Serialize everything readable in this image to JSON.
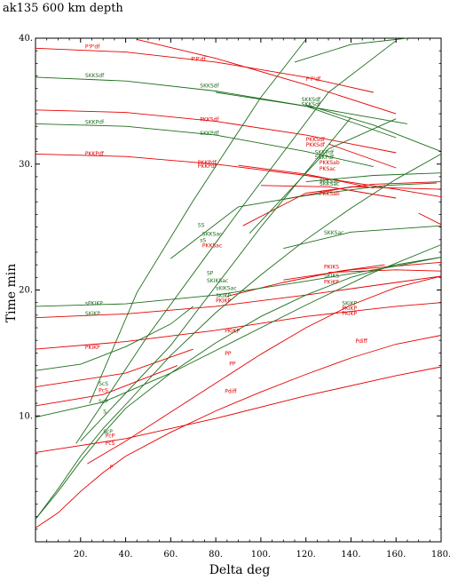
{
  "chart_data": {
    "type": "line",
    "title": "ak135  600 km depth",
    "xlabel": "Delta  deg",
    "ylabel": "Time  min",
    "xlim": [
      0,
      180
    ],
    "ylim": [
      0,
      40
    ],
    "xticks": [
      20,
      40,
      60,
      80,
      100,
      120,
      140,
      160,
      180
    ],
    "xtick_labels": [
      "20.",
      "40.",
      "60.",
      "80.",
      "100.",
      "120.",
      "140.",
      "160.",
      "180."
    ],
    "yticks": [
      10,
      20,
      30,
      40
    ],
    "ytick_labels": [
      "10.",
      "20.",
      "30.",
      "40."
    ],
    "grid": false,
    "colors": {
      "P": "#e60000",
      "S": "#1e6e1e"
    },
    "series": [
      {
        "color": "P",
        "x": [
          0,
          10,
          20,
          30,
          40,
          60,
          80,
          100,
          120,
          140,
          160,
          180
        ],
        "y": [
          1.1,
          2.3,
          4.0,
          5.5,
          6.8,
          8.7,
          10.4,
          11.9,
          13.3,
          14.6,
          15.7,
          16.4
        ]
      },
      {
        "color": "P",
        "x": [
          23,
          40,
          60,
          80,
          100,
          120,
          140,
          160,
          180
        ],
        "y": [
          6.2,
          8.0,
          10.3,
          12.6,
          14.9,
          17.0,
          18.8,
          20.2,
          21.1
        ]
      },
      {
        "color": "P",
        "x": [
          0,
          40,
          80,
          120,
          160,
          180
        ],
        "y": [
          7.1,
          8.2,
          9.8,
          11.6,
          13.2,
          13.9
        ]
      },
      {
        "color": "P",
        "x": [
          0,
          40,
          80,
          120,
          160,
          180
        ],
        "y": [
          15.3,
          15.9,
          16.8,
          17.9,
          18.7,
          19.0
        ]
      },
      {
        "color": "P",
        "x": [
          0,
          40,
          80,
          120,
          160,
          180
        ],
        "y": [
          17.8,
          18.1,
          18.7,
          19.6,
          20.6,
          21.1
        ]
      },
      {
        "color": "P",
        "x": [
          0,
          40,
          80,
          120,
          160,
          180
        ],
        "y": [
          30.8,
          30.6,
          30.0,
          29.1,
          28.0,
          27.4
        ]
      },
      {
        "color": "P",
        "x": [
          0,
          40,
          80,
          120,
          160
        ],
        "y": [
          34.3,
          34.1,
          33.4,
          32.3,
          30.9
        ]
      },
      {
        "color": "P",
        "x": [
          0,
          40,
          80,
          120,
          150
        ],
        "y": [
          39.2,
          38.9,
          38.1,
          36.9,
          35.7
        ]
      },
      {
        "color": "P",
        "x": [
          45,
          80,
          120,
          160
        ],
        "y": [
          39.9,
          38.4,
          36.3,
          34.0
        ]
      },
      {
        "color": "P",
        "x": [
          0,
          30,
          63
        ],
        "y": [
          10.8,
          11.7,
          14.0
        ]
      },
      {
        "color": "P",
        "x": [
          0,
          40,
          70
        ],
        "y": [
          12.3,
          13.4,
          15.3
        ]
      },
      {
        "color": "P",
        "x": [
          92,
          120,
          150,
          180
        ],
        "y": [
          25.1,
          27.7,
          28.4,
          28.6
        ]
      },
      {
        "color": "P",
        "x": [
          110,
          140,
          180
        ],
        "y": [
          27.2,
          28.2,
          28.0
        ]
      },
      {
        "color": "P",
        "x": [
          110,
          140,
          180
        ],
        "y": [
          20.8,
          21.6,
          22.2
        ]
      },
      {
        "color": "P",
        "x": [
          130,
          160,
          180
        ],
        "y": [
          21.4,
          21.6,
          21.5
        ]
      },
      {
        "color": "P",
        "x": [
          100,
          130,
          160
        ],
        "y": [
          28.3,
          28.2,
          27.3
        ]
      },
      {
        "color": "P",
        "x": [
          170,
          180
        ],
        "y": [
          26.1,
          25.2
        ]
      },
      {
        "color": "P",
        "x": [
          85,
          110,
          135,
          155
        ],
        "y": [
          19.5,
          20.6,
          21.5,
          22.0
        ]
      },
      {
        "color": "P",
        "x": [
          90,
          120,
          150
        ],
        "y": [
          29.9,
          29.2,
          28.1
        ]
      },
      {
        "color": "P",
        "x": [
          130,
          160
        ],
        "y": [
          31.6,
          29.7
        ]
      },
      {
        "color": "S",
        "x": [
          0,
          10,
          20,
          30,
          40,
          60,
          80,
          100,
          120,
          140,
          160,
          180
        ],
        "y": [
          1.8,
          4.2,
          6.8,
          9.0,
          10.9,
          14.8,
          18.2,
          21.2,
          24.0,
          26.5,
          28.8,
          30.8
        ]
      },
      {
        "color": "S",
        "x": [
          0,
          10,
          20,
          30,
          40,
          60,
          80,
          100,
          120,
          140,
          160,
          180
        ],
        "y": [
          1.8,
          4.0,
          6.4,
          8.6,
          10.6,
          13.4,
          15.8,
          17.9,
          19.6,
          21.0,
          22.0,
          22.6
        ]
      },
      {
        "color": "S",
        "x": [
          0,
          30,
          60,
          90,
          120,
          150,
          180
        ],
        "y": [
          9.9,
          11.1,
          13.4,
          16.1,
          18.8,
          21.4,
          23.6
        ]
      },
      {
        "color": "S",
        "x": [
          0,
          20,
          40,
          60,
          70
        ],
        "y": [
          13.6,
          14.1,
          15.5,
          17.3,
          18.7
        ]
      },
      {
        "color": "S",
        "x": [
          0,
          40,
          80,
          120,
          160,
          180
        ],
        "y": [
          18.7,
          18.9,
          19.6,
          20.7,
          21.9,
          22.6
        ]
      },
      {
        "color": "S",
        "x": [
          0,
          40,
          80,
          120,
          150
        ],
        "y": [
          33.2,
          33.0,
          32.3,
          31.0,
          29.8
        ]
      },
      {
        "color": "S",
        "x": [
          0,
          40,
          80,
          120,
          165
        ],
        "y": [
          36.9,
          36.6,
          35.8,
          34.6,
          33.2
        ]
      },
      {
        "color": "S",
        "x": [
          80,
          120,
          160
        ],
        "y": [
          35.7,
          34.6,
          32.1
        ]
      },
      {
        "color": "S",
        "x": [
          120,
          150,
          180
        ],
        "y": [
          34.7,
          33.1,
          31.0
        ]
      },
      {
        "color": "S",
        "x": [
          110,
          140,
          180
        ],
        "y": [
          23.3,
          24.6,
          25.1
        ]
      },
      {
        "color": "S",
        "x": [
          120,
          150,
          180
        ],
        "y": [
          28.6,
          29.1,
          29.3
        ]
      },
      {
        "color": "S",
        "x": [
          20,
          60,
          100,
          140
        ],
        "y": [
          8.0,
          15.6,
          25.0,
          33.7
        ]
      },
      {
        "color": "S",
        "x": [
          18,
          50,
          90,
          130,
          160
        ],
        "y": [
          7.8,
          16.4,
          26.2,
          35.7,
          39.8
        ]
      },
      {
        "color": "S",
        "x": [
          24,
          45,
          70,
          100,
          120
        ],
        "y": [
          11.0,
          19.8,
          27.1,
          35.3,
          39.9
        ]
      },
      {
        "color": "S",
        "x": [
          60,
          90,
          120,
          155,
          178
        ],
        "y": [
          22.5,
          26.6,
          27.5,
          28.3,
          28.5
        ]
      },
      {
        "color": "S",
        "x": [
          95,
          130,
          160
        ],
        "y": [
          24.5,
          31.2,
          33.6
        ]
      },
      {
        "color": "S",
        "x": [
          115,
          140,
          165
        ],
        "y": [
          38.1,
          39.5,
          40.0
        ]
      }
    ],
    "labels": [
      {
        "text": "P'P'df",
        "x": 22,
        "y": 39.2,
        "color": "P"
      },
      {
        "text": "P'P'df",
        "x": 69,
        "y": 38.2,
        "color": "P"
      },
      {
        "text": "P'P'df",
        "x": 120,
        "y": 36.6,
        "color": "P"
      },
      {
        "text": "SKKSdf",
        "x": 22,
        "y": 36.9,
        "color": "S"
      },
      {
        "text": "SKKSdf",
        "x": 73,
        "y": 36.1,
        "color": "S"
      },
      {
        "text": "SKKSdf",
        "x": 118,
        "y": 35.0,
        "color": "S"
      },
      {
        "text": "SKKSdf",
        "x": 118,
        "y": 34.6,
        "color": "S"
      },
      {
        "text": "SKKPdf",
        "x": 22,
        "y": 33.2,
        "color": "S"
      },
      {
        "text": "PKKSdf",
        "x": 73,
        "y": 33.4,
        "color": "P"
      },
      {
        "text": "SKKPdf",
        "x": 73,
        "y": 32.3,
        "color": "S"
      },
      {
        "text": "PKKSdf",
        "x": 120,
        "y": 31.8,
        "color": "P"
      },
      {
        "text": "PKKSdf",
        "x": 120,
        "y": 31.4,
        "color": "P"
      },
      {
        "text": "SKKPdf",
        "x": 124,
        "y": 30.8,
        "color": "S"
      },
      {
        "text": "SKKPdf",
        "x": 124,
        "y": 30.4,
        "color": "S"
      },
      {
        "text": "PKKPdf",
        "x": 22,
        "y": 30.7,
        "color": "P"
      },
      {
        "text": "PKKPdf",
        "x": 72,
        "y": 30.0,
        "color": "P"
      },
      {
        "text": "PKKPdf",
        "x": 72,
        "y": 29.7,
        "color": "P"
      },
      {
        "text": "PKKSab",
        "x": 126,
        "y": 30.0,
        "color": "P"
      },
      {
        "text": "SKKSab",
        "x": 126,
        "y": 28.5,
        "color": "S"
      },
      {
        "text": "PKKSab",
        "x": 126,
        "y": 27.5,
        "color": "P"
      },
      {
        "text": "SKKSac",
        "x": 126,
        "y": 28.3,
        "color": "S"
      },
      {
        "text": "PKSac",
        "x": 126,
        "y": 29.5,
        "color": "P"
      },
      {
        "text": "SS",
        "x": 72,
        "y": 25.0,
        "color": "S"
      },
      {
        "text": "SKKSac",
        "x": 74,
        "y": 24.3,
        "color": "S"
      },
      {
        "text": "sS",
        "x": 73,
        "y": 23.8,
        "color": "S"
      },
      {
        "text": "PKKSac",
        "x": 74,
        "y": 23.4,
        "color": "P"
      },
      {
        "text": "SKKSac",
        "x": 128,
        "y": 24.4,
        "color": "S"
      },
      {
        "text": "SP",
        "x": 76,
        "y": 21.2,
        "color": "S"
      },
      {
        "text": "SKIKSac",
        "x": 76,
        "y": 20.6,
        "color": "S"
      },
      {
        "text": "sKIKSac",
        "x": 80,
        "y": 20.0,
        "color": "S"
      },
      {
        "text": "SKIKP",
        "x": 80,
        "y": 19.4,
        "color": "S"
      },
      {
        "text": "PKIKP",
        "x": 80,
        "y": 19.0,
        "color": "P"
      },
      {
        "text": "PKIKS",
        "x": 128,
        "y": 21.7,
        "color": "P"
      },
      {
        "text": "SKIKS",
        "x": 128,
        "y": 21.0,
        "color": "S"
      },
      {
        "text": "PKiKP",
        "x": 128,
        "y": 20.5,
        "color": "P"
      },
      {
        "text": "sPKIKP",
        "x": 22,
        "y": 18.8,
        "color": "S"
      },
      {
        "text": "SKiKP",
        "x": 22,
        "y": 18.0,
        "color": "S"
      },
      {
        "text": "PKiKP",
        "x": 22,
        "y": 15.3,
        "color": "P"
      },
      {
        "text": "PKiKP",
        "x": 84,
        "y": 16.6,
        "color": "P"
      },
      {
        "text": "SKiKP",
        "x": 136,
        "y": 18.8,
        "color": "S"
      },
      {
        "text": "PKiKP",
        "x": 136,
        "y": 18.4,
        "color": "P"
      },
      {
        "text": "PKiKP",
        "x": 136,
        "y": 18.0,
        "color": "P"
      },
      {
        "text": "PP",
        "x": 84,
        "y": 14.8,
        "color": "P"
      },
      {
        "text": "PP",
        "x": 86,
        "y": 14.0,
        "color": "P"
      },
      {
        "text": "Pdiff",
        "x": 142,
        "y": 15.8,
        "color": "P"
      },
      {
        "text": "Pdiff",
        "x": 84,
        "y": 11.8,
        "color": "P"
      },
      {
        "text": "ScS",
        "x": 28,
        "y": 12.4,
        "color": "S"
      },
      {
        "text": "PcS",
        "x": 28,
        "y": 11.9,
        "color": "P"
      },
      {
        "text": "ScP",
        "x": 28,
        "y": 11.0,
        "color": "S"
      },
      {
        "text": "PcP",
        "x": 31,
        "y": 8.3,
        "color": "P"
      },
      {
        "text": "ScP",
        "x": 30,
        "y": 8.6,
        "color": "S"
      },
      {
        "text": "PcS",
        "x": 31,
        "y": 7.7,
        "color": "P"
      },
      {
        "text": "S",
        "x": 30,
        "y": 10.2,
        "color": "S"
      },
      {
        "text": "P",
        "x": 33,
        "y": 5.8,
        "color": "P"
      }
    ]
  }
}
